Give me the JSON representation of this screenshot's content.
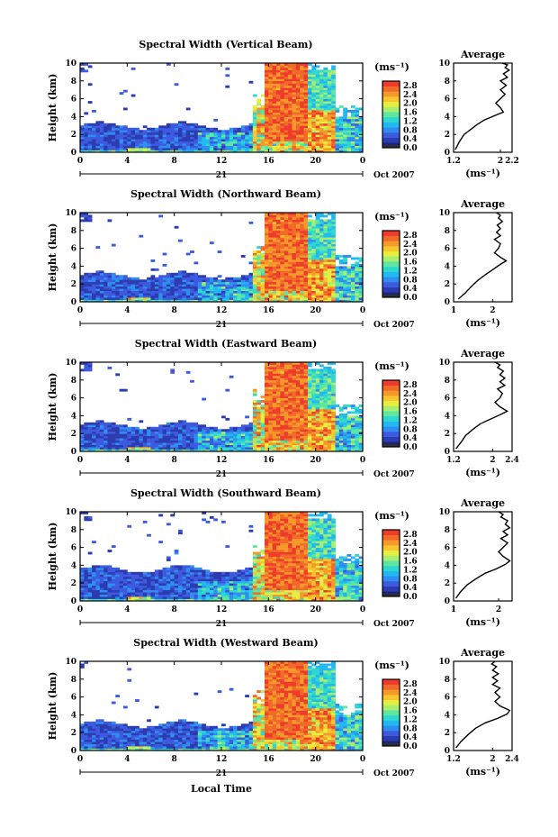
{
  "figure": {
    "xlabel": "Local Time",
    "date_label": "Oct 2007",
    "day_label": "21",
    "x_ticks": [
      "0",
      "4",
      "8",
      "12",
      "16",
      "20",
      "0"
    ],
    "y_ticks": [
      "0",
      "2",
      "4",
      "6",
      "8",
      "10"
    ],
    "ylabel": "Height (km)",
    "cbar_unit": "(ms⁻¹)",
    "cbar_ticks": [
      "0.0",
      "0.4",
      "0.8",
      "1.2",
      "1.6",
      "2.0",
      "2.4",
      "2.8"
    ],
    "avg_title": "Average",
    "avg_xlabel": "(ms⁻¹)",
    "colors": {
      "scale": [
        "#1a237e",
        "#2c3cb0",
        "#3d5be0",
        "#2f8ef0",
        "#22b8f0",
        "#2ed8d0",
        "#5fe6a0",
        "#a8ee70",
        "#e6ee40",
        "#f7c52e",
        "#f59a2a",
        "#f26a2a",
        "#ef3b2c"
      ],
      "bad": "#303030"
    }
  },
  "chart_data": [
    {
      "type": "heatmap",
      "title": "Spectral Width (Vertical Beam)",
      "xlabel": "Local Time",
      "ylabel": "Height (km)",
      "xlim": [
        0,
        24
      ],
      "ylim": [
        0,
        10
      ],
      "clim": [
        0,
        3.0
      ],
      "avg_profile": {
        "xlim": [
          1.2,
          2.2
        ],
        "xticks": [
          "1.2",
          "2",
          "2.2"
        ],
        "x": [
          1.23,
          1.3,
          1.38,
          1.5,
          1.6,
          1.72,
          1.9,
          2.05,
          2.0,
          1.92,
          2.0,
          2.08,
          2.0,
          2.1,
          2.0,
          2.12,
          2.05,
          2.15,
          2.08,
          2.12,
          2.03
        ],
        "height": [
          0.3,
          1.2,
          2.0,
          2.6,
          3.1,
          3.6,
          4.1,
          4.5,
          5.0,
          5.5,
          6.0,
          6.5,
          7.0,
          7.5,
          8.0,
          8.4,
          8.8,
          9.2,
          9.5,
          9.8,
          10.0
        ]
      }
    },
    {
      "type": "heatmap",
      "title": "Spectral Width (Northward Beam)",
      "xlabel": "Local Time",
      "ylabel": "Height (km)",
      "xlim": [
        0,
        24
      ],
      "ylim": [
        0,
        10
      ],
      "clim": [
        0,
        3.0
      ],
      "avg_profile": {
        "xlim": [
          1,
          2.5
        ],
        "xticks": [
          "1",
          "2"
        ],
        "x": [
          1.12,
          1.3,
          1.45,
          1.62,
          1.8,
          2.0,
          2.2,
          2.35,
          2.2,
          2.05,
          2.15,
          2.2,
          2.05,
          2.2,
          2.1,
          2.2,
          2.12,
          2.25,
          2.15,
          2.2,
          2.1
        ],
        "height": [
          0.3,
          1.0,
          1.7,
          2.4,
          3.0,
          3.6,
          4.2,
          4.6,
          5.0,
          5.5,
          6.0,
          6.5,
          7.0,
          7.4,
          7.8,
          8.2,
          8.6,
          9.0,
          9.4,
          9.7,
          10.0
        ]
      }
    },
    {
      "type": "heatmap",
      "title": "Spectral Width (Eastward Beam)",
      "xlabel": "Local Time",
      "ylabel": "Height (km)",
      "xlim": [
        0,
        24
      ],
      "ylim": [
        0,
        10
      ],
      "clim": [
        0,
        3.0
      ],
      "avg_profile": {
        "xlim": [
          1.2,
          2.4
        ],
        "xticks": [
          "1.2",
          "2",
          "2.4"
        ],
        "x": [
          1.25,
          1.35,
          1.45,
          1.6,
          1.75,
          1.95,
          2.15,
          2.3,
          2.15,
          2.05,
          2.15,
          2.2,
          2.1,
          2.25,
          2.15,
          2.25,
          2.15,
          2.22,
          2.1,
          2.15,
          2.05
        ],
        "height": [
          0.3,
          1.0,
          1.8,
          2.5,
          3.1,
          3.6,
          4.1,
          4.5,
          5.0,
          5.5,
          6.0,
          6.5,
          7.0,
          7.4,
          7.8,
          8.2,
          8.6,
          9.0,
          9.4,
          9.7,
          10.0
        ]
      }
    },
    {
      "type": "heatmap",
      "title": "Spectral Width (Southward Beam)",
      "xlabel": "Local Time",
      "ylabel": "Height (km)",
      "xlim": [
        0,
        24
      ],
      "ylim": [
        0,
        10
      ],
      "clim": [
        0,
        3.0
      ],
      "avg_profile": {
        "xlim": [
          1,
          2.3
        ],
        "xticks": [
          "1",
          "2"
        ],
        "x": [
          1.05,
          1.15,
          1.3,
          1.5,
          1.7,
          1.95,
          2.15,
          2.25,
          2.1,
          2.0,
          2.1,
          2.2,
          2.05,
          2.2,
          2.1,
          2.25,
          2.15,
          2.2,
          2.05,
          2.1,
          2.0
        ],
        "height": [
          0.3,
          1.0,
          1.8,
          2.5,
          3.1,
          3.6,
          4.1,
          4.5,
          5.0,
          5.5,
          6.0,
          6.5,
          7.0,
          7.4,
          7.8,
          8.2,
          8.6,
          9.0,
          9.4,
          9.7,
          10.0
        ]
      }
    },
    {
      "type": "heatmap",
      "title": "Spectral Width (Westward Beam)",
      "xlabel": "Local Time",
      "ylabel": "Height (km)",
      "xlim": [
        0,
        24
      ],
      "ylim": [
        0,
        10
      ],
      "clim": [
        0,
        3.0
      ],
      "avg_profile": {
        "xlim": [
          1.2,
          2.4
        ],
        "xticks": [
          "1.2",
          "2",
          "2.4"
        ],
        "x": [
          1.25,
          1.35,
          1.5,
          1.65,
          1.85,
          2.1,
          2.3,
          2.35,
          2.15,
          2.05,
          2.15,
          2.05,
          2.15,
          2.0,
          2.1,
          2.0,
          2.12,
          2.0,
          2.08,
          1.98,
          2.05
        ],
        "height": [
          0.3,
          1.0,
          1.8,
          2.5,
          3.1,
          3.6,
          4.1,
          4.5,
          5.0,
          5.5,
          6.0,
          6.5,
          7.0,
          7.4,
          7.8,
          8.2,
          8.6,
          9.0,
          9.4,
          9.7,
          10.0
        ]
      }
    }
  ]
}
